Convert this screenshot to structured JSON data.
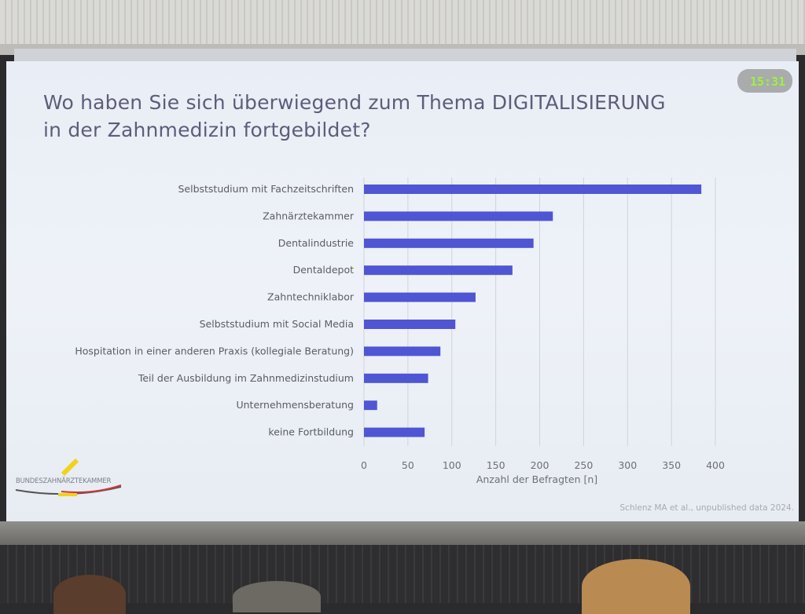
{
  "slide": {
    "title_line1": "Wo haben Sie sich überwiegend zum Thema DIGITALISIERUNG",
    "title_line2": "in der Zahnmedizin fortgebildet?",
    "clock": "15:31",
    "source": "Schlenz MA et al., unpublished data 2024.",
    "logo_text": "BUNDESZAHNÄRZTEKAMMER"
  },
  "colors": {
    "bar": "#4f55d3",
    "title": "#5d5d7a",
    "grid": "#cfd3da"
  },
  "chart_data": {
    "type": "bar",
    "orientation": "horizontal",
    "title": "Wo haben Sie sich überwiegend zum Thema DIGITALISIERUNG in der Zahnmedizin fortgebildet?",
    "xlabel": "Anzahl der Befragten [n]",
    "ylabel": "",
    "xlim": [
      0,
      400
    ],
    "xticks": [
      "0",
      "50",
      "100",
      "150",
      "200",
      "250",
      "300",
      "350",
      "400"
    ],
    "grid": true,
    "categories": [
      "Selbststudium mit Fachzeitschriften",
      "Zahnärztekammer",
      "Dentalindustrie",
      "Dentaldepot",
      "Zahntechniklabor",
      "Selbststudium mit Social Media",
      "Hospitation in einer anderen Praxis (kollegiale Beratung)",
      "Teil der Ausbildung im Zahnmedizinstudium",
      "Unternehmensberatung",
      "keine Fortbildung"
    ],
    "values": [
      384,
      215,
      193,
      169,
      127,
      104,
      87,
      73,
      15,
      69
    ]
  }
}
